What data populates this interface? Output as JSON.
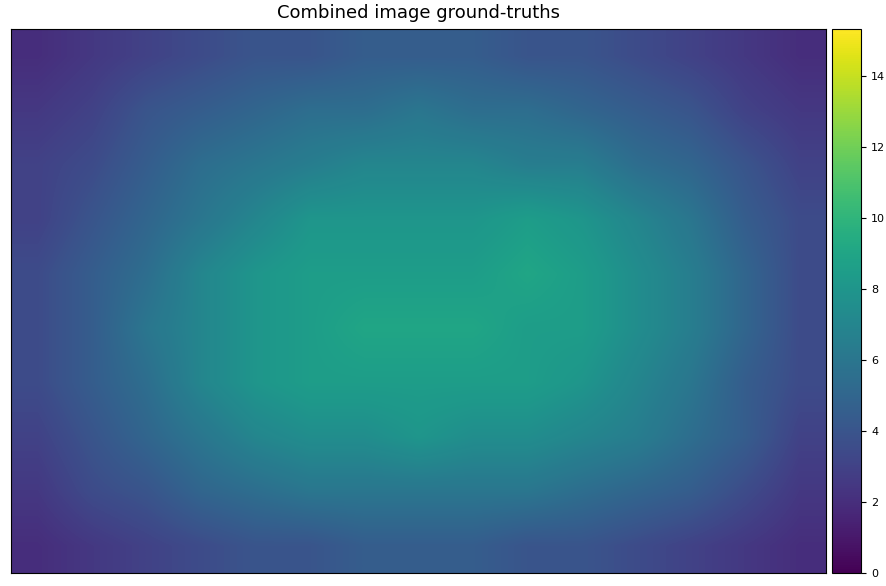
{
  "chart_data": {
    "type": "heatmap",
    "title": "Combined image ground-truths",
    "tick_labels": false,
    "cells": [
      [
        2,
        2.5,
        3,
        3.5,
        4,
        4,
        4.5,
        4.5,
        4.5,
        4,
        4,
        3.5,
        3,
        2.5,
        2
      ],
      [
        2.5,
        3,
        4,
        4.5,
        5,
        5.5,
        5.5,
        6,
        5.5,
        5.5,
        5,
        4.5,
        4,
        3,
        2.5
      ],
      [
        3,
        3.5,
        4.5,
        5.5,
        6,
        6.5,
        7,
        7,
        7,
        6.5,
        6.5,
        5.5,
        5,
        4,
        3
      ],
      [
        3,
        4,
        5,
        6,
        7,
        8,
        8,
        8,
        8,
        8.5,
        8,
        7,
        6,
        4.5,
        3.5
      ],
      [
        3.5,
        4.5,
        5.5,
        7,
        8,
        8.5,
        8.5,
        8.5,
        8.5,
        9,
        8.5,
        7.5,
        6.5,
        5,
        3.5
      ],
      [
        3.5,
        4.5,
        6,
        7,
        8,
        8.5,
        9,
        9,
        9,
        8.5,
        8.5,
        7.5,
        6.5,
        5,
        3.5
      ],
      [
        3.5,
        4.5,
        5.5,
        7,
        8,
        8.5,
        8.5,
        8.5,
        8.5,
        8.5,
        8,
        7,
        6,
        4.5,
        3.5
      ],
      [
        3,
        4,
        5,
        6,
        7,
        7.5,
        7.5,
        8,
        7.5,
        7.5,
        7,
        6.5,
        5.5,
        4.5,
        3
      ],
      [
        2.5,
        3.5,
        4,
        5,
        5.5,
        6,
        6,
        6,
        6,
        6,
        5.5,
        5,
        4.5,
        3.5,
        2.5
      ],
      [
        2,
        2.5,
        3,
        3.5,
        4,
        4,
        4.5,
        4.5,
        4.5,
        4,
        4,
        3.5,
        3,
        2.5,
        2
      ]
    ],
    "colorbar": {
      "range": [
        0,
        15.3
      ],
      "ticks": [
        0,
        2,
        4,
        6,
        8,
        10,
        12,
        14
      ]
    }
  }
}
